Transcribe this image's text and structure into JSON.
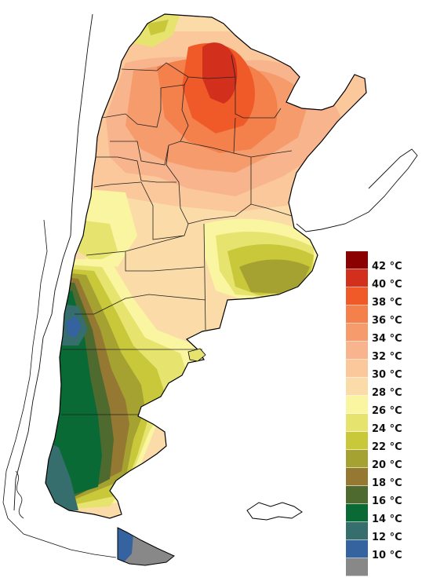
{
  "legend": {
    "bins": [
      {
        "label": "42 °C",
        "color": "#8b0000"
      },
      {
        "label": "40 °C",
        "color": "#d2301c"
      },
      {
        "label": "38 °C",
        "color": "#f05a28"
      },
      {
        "label": "36 °C",
        "color": "#f4804c"
      },
      {
        "label": "34 °C",
        "color": "#f69c6c"
      },
      {
        "label": "32 °C",
        "color": "#f8b48c"
      },
      {
        "label": "30 °C",
        "color": "#fac89a"
      },
      {
        "label": "28 °C",
        "color": "#fbdca8"
      },
      {
        "label": "26 °C",
        "color": "#faf5a0"
      },
      {
        "label": "24 °C",
        "color": "#e6e46e"
      },
      {
        "label": "22 °C",
        "color": "#c8c83a"
      },
      {
        "label": "20 °C",
        "color": "#a6a232"
      },
      {
        "label": "18 °C",
        "color": "#957832"
      },
      {
        "label": "16 °C",
        "color": "#4f6a2e"
      },
      {
        "label": "14 °C",
        "color": "#0a6a36"
      },
      {
        "label": "12 °C",
        "color": "#356e6c"
      },
      {
        "label": "10 °C",
        "color": "#3463a0"
      },
      {
        "label": "",
        "color": "#888888"
      }
    ]
  }
}
